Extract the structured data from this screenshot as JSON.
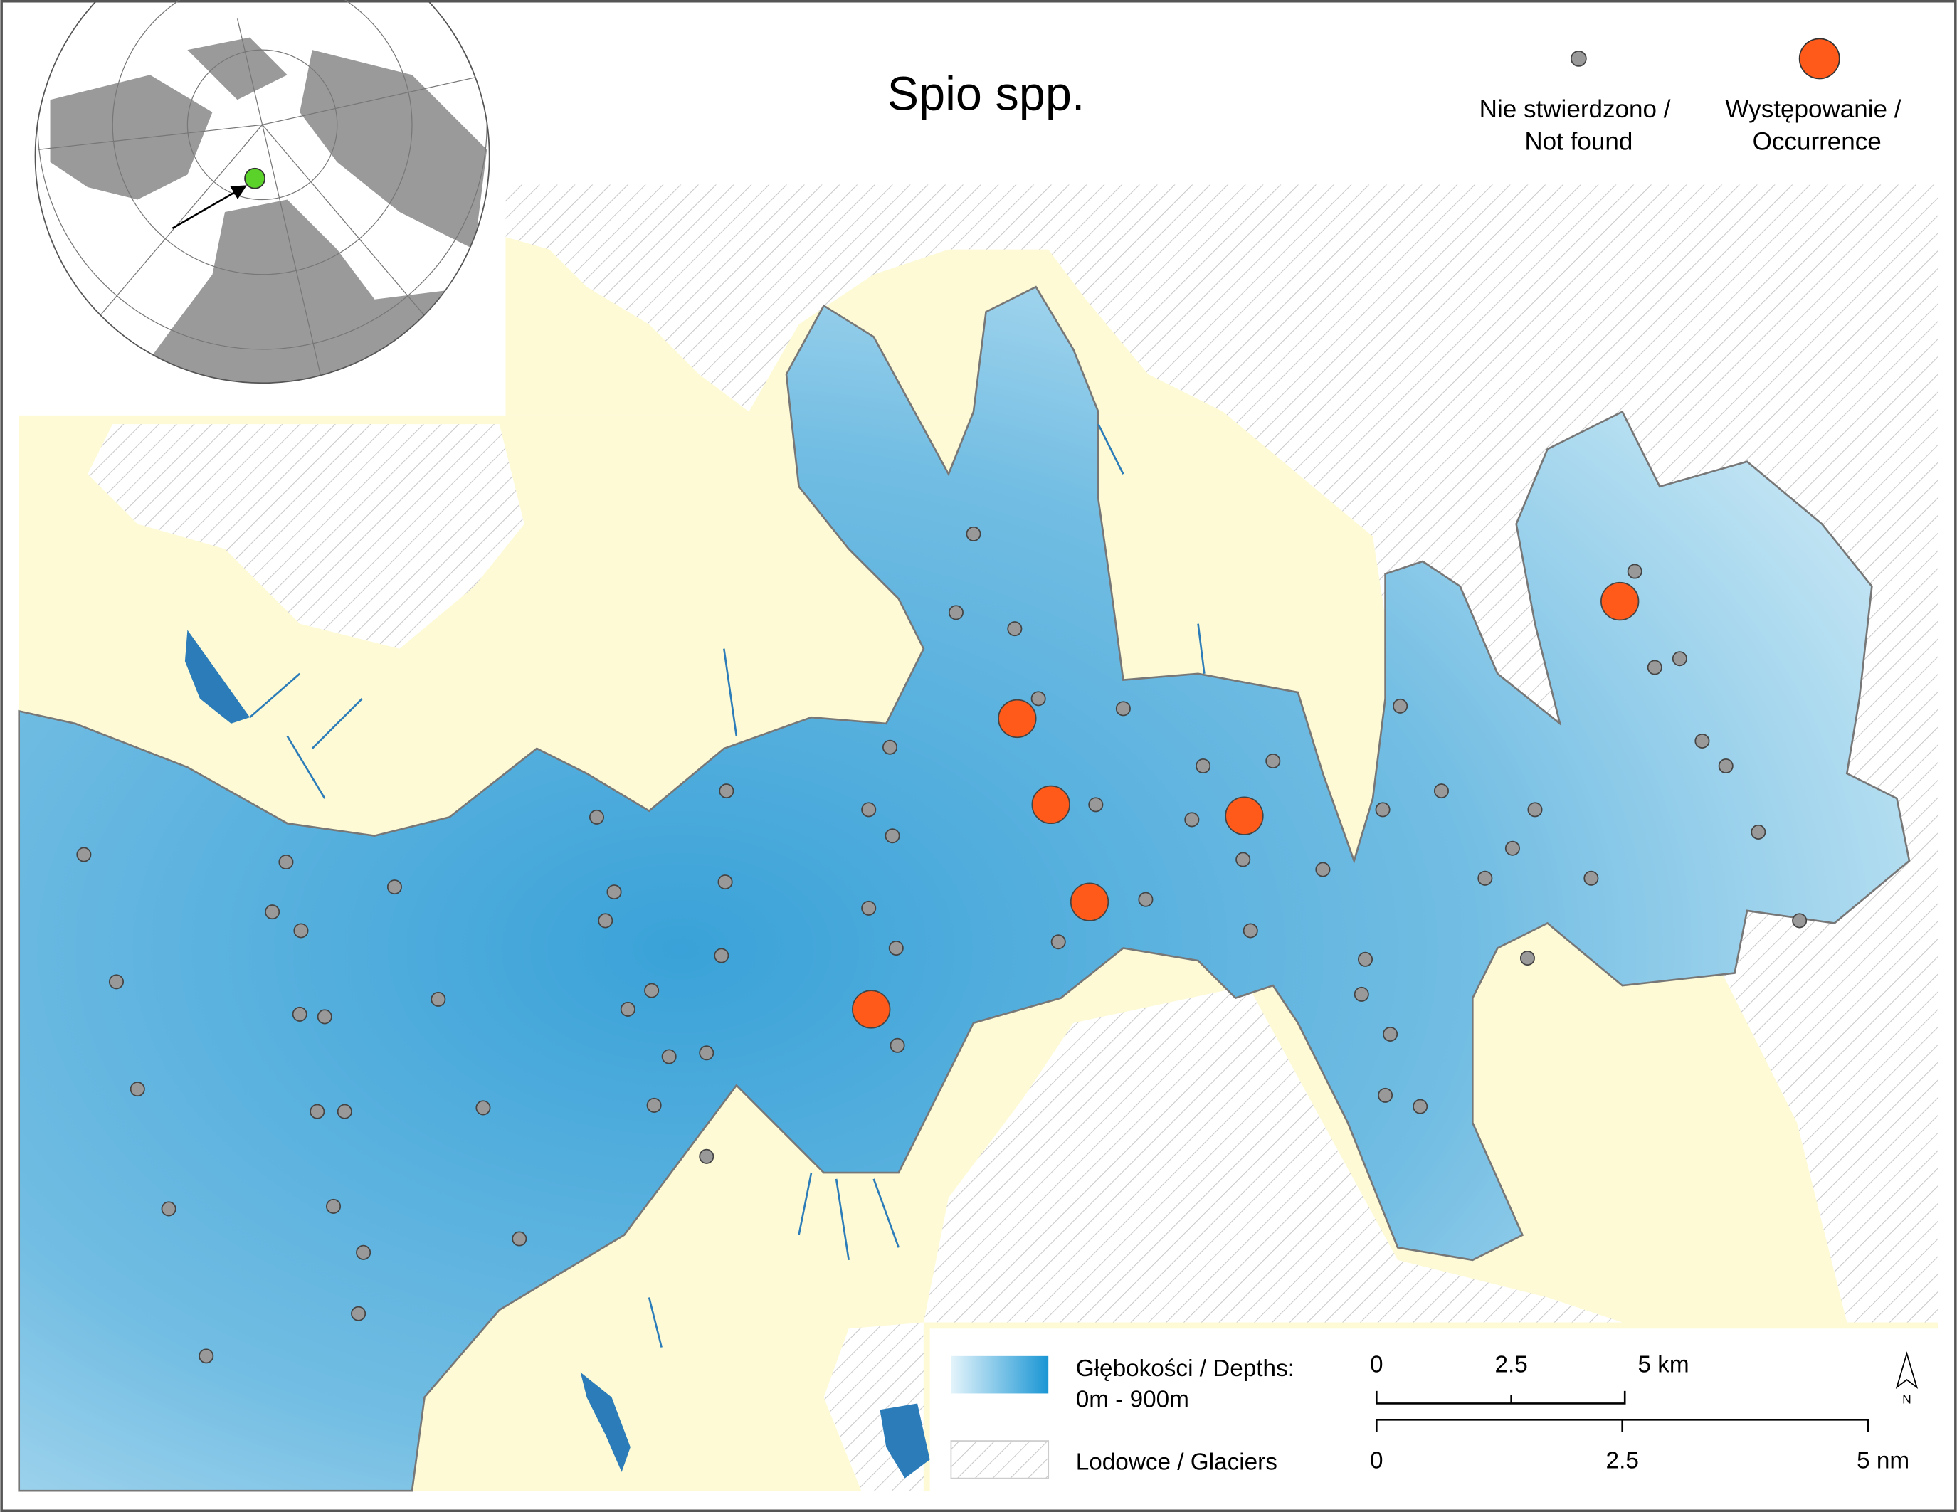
{
  "title": "Spio spp.",
  "legend": {
    "not_found": [
      "Nie stwierdzono /",
      "Not found"
    ],
    "occurrence": [
      "Występowanie /",
      "Occurrence"
    ],
    "depths": [
      "Głębokości / Depths:",
      "0m - 900m"
    ],
    "glaciers": "Lodowce / Glaciers"
  },
  "scale_bar": {
    "km": [
      "0",
      "2.5",
      "5 km"
    ],
    "nm": [
      "0",
      "2.5",
      "5 nm"
    ]
  },
  "north": "N"
}
